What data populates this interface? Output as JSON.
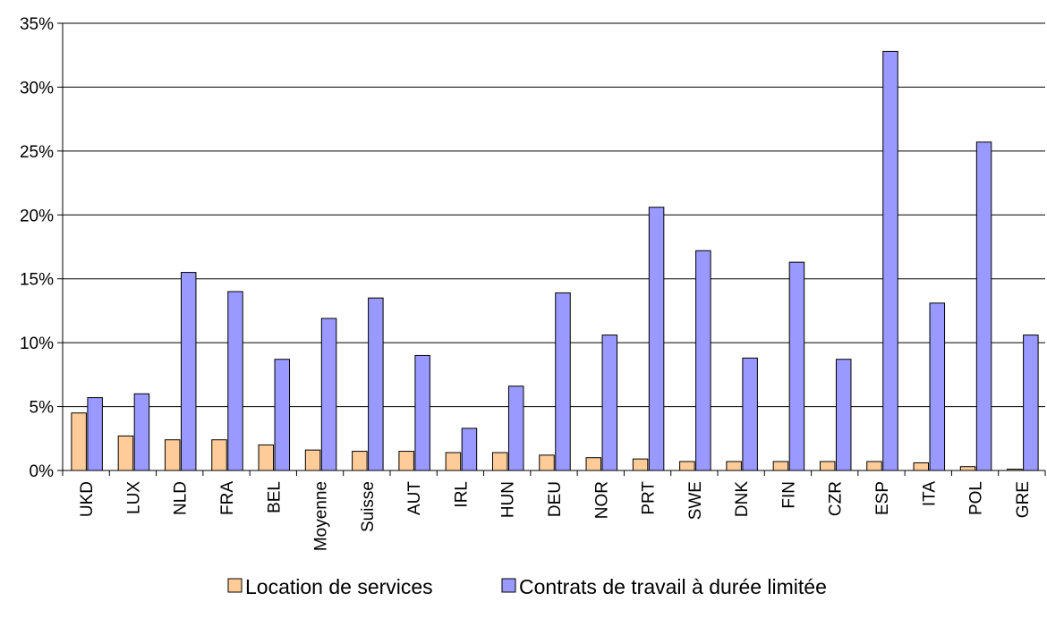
{
  "chart_data": {
    "type": "bar",
    "categories": [
      "UKD",
      "LUX",
      "NLD",
      "FRA",
      "BEL",
      "Moyenne",
      "Suisse",
      "AUT",
      "IRL",
      "HUN",
      "DEU",
      "NOR",
      "PRT",
      "SWE",
      "DNK",
      "FIN",
      "CZR",
      "ESP",
      "ITA",
      "POL",
      "GRE"
    ],
    "series": [
      {
        "name": "Location de services",
        "color": "#FFCC99",
        "values": [
          4.5,
          2.7,
          2.4,
          2.4,
          2.0,
          1.6,
          1.5,
          1.5,
          1.4,
          1.4,
          1.2,
          1.0,
          0.9,
          0.7,
          0.7,
          0.7,
          0.7,
          0.7,
          0.6,
          0.3,
          0.1
        ]
      },
      {
        "name": "Contrats de travail à durée limitée",
        "color": "#9999FF",
        "values": [
          5.7,
          6.0,
          15.5,
          14.0,
          8.7,
          11.9,
          13.5,
          9.0,
          3.3,
          6.6,
          13.9,
          10.6,
          20.6,
          17.2,
          8.8,
          16.3,
          8.7,
          32.8,
          13.1,
          25.7,
          10.6
        ]
      }
    ],
    "y_ticks": [
      "0%",
      "5%",
      "10%",
      "15%",
      "20%",
      "25%",
      "30%",
      "35%"
    ],
    "ylim": [
      0,
      35
    ],
    "grid": true,
    "legend_position": "bottom",
    "title": "",
    "xlabel": "",
    "ylabel": ""
  }
}
